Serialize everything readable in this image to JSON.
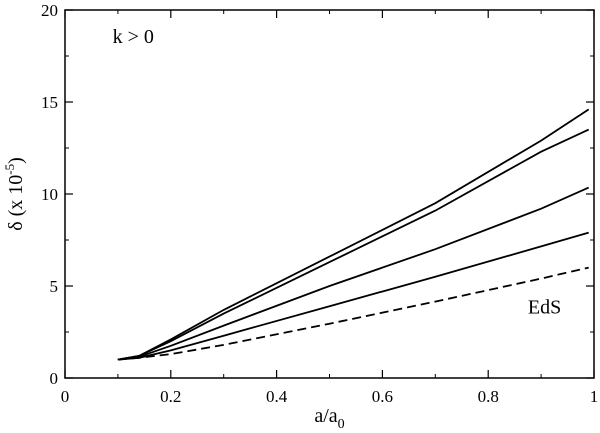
{
  "chart_data": {
    "type": "line",
    "title": "",
    "xlabel": {
      "main": "a/a",
      "sub": "0"
    },
    "ylabel": {
      "main": "δ (x 10",
      "sup": "-5",
      "close": ")"
    },
    "xlim": [
      0,
      1
    ],
    "ylim": [
      0,
      20
    ],
    "xticks": [
      0,
      0.2,
      0.4,
      0.6,
      0.8,
      1
    ],
    "xtick_labels": [
      "0",
      "0.2",
      "0.4",
      "0.6",
      "0.8",
      "1"
    ],
    "yticks": [
      0,
      5,
      10,
      15,
      20
    ],
    "ytick_labels": [
      "0",
      "5",
      "10",
      "15",
      "20"
    ],
    "grid": false,
    "annotations": [
      {
        "text": "k > 0",
        "x": 0.09,
        "y": 18.2
      },
      {
        "text": "EdS",
        "x": 0.875,
        "y": 3.5
      }
    ],
    "series": [
      {
        "style": "solid",
        "x": [
          0.1,
          0.14,
          0.2,
          0.3,
          0.5,
          0.7,
          0.9,
          0.99
        ],
        "y": [
          1.0,
          1.2,
          2.1,
          3.7,
          6.6,
          9.5,
          12.9,
          14.6
        ]
      },
      {
        "style": "solid",
        "x": [
          0.1,
          0.14,
          0.2,
          0.3,
          0.5,
          0.7,
          0.9,
          0.99
        ],
        "y": [
          1.0,
          1.2,
          2.0,
          3.5,
          6.3,
          9.1,
          12.3,
          13.5
        ]
      },
      {
        "style": "solid",
        "x": [
          0.1,
          0.14,
          0.2,
          0.3,
          0.5,
          0.7,
          0.9,
          0.99
        ],
        "y": [
          1.0,
          1.15,
          1.75,
          2.85,
          5.0,
          7.0,
          9.2,
          10.35
        ]
      },
      {
        "style": "solid",
        "x": [
          0.1,
          0.14,
          0.2,
          0.3,
          0.5,
          0.7,
          0.9,
          0.99
        ],
        "y": [
          1.0,
          1.1,
          1.5,
          2.3,
          3.9,
          5.5,
          7.15,
          7.9
        ]
      },
      {
        "style": "dashed",
        "x": [
          0.1,
          0.14,
          0.2,
          0.3,
          0.5,
          0.7,
          0.9,
          0.99
        ],
        "y": [
          1.0,
          1.1,
          1.3,
          1.8,
          2.95,
          4.15,
          5.4,
          6.0
        ]
      }
    ]
  }
}
